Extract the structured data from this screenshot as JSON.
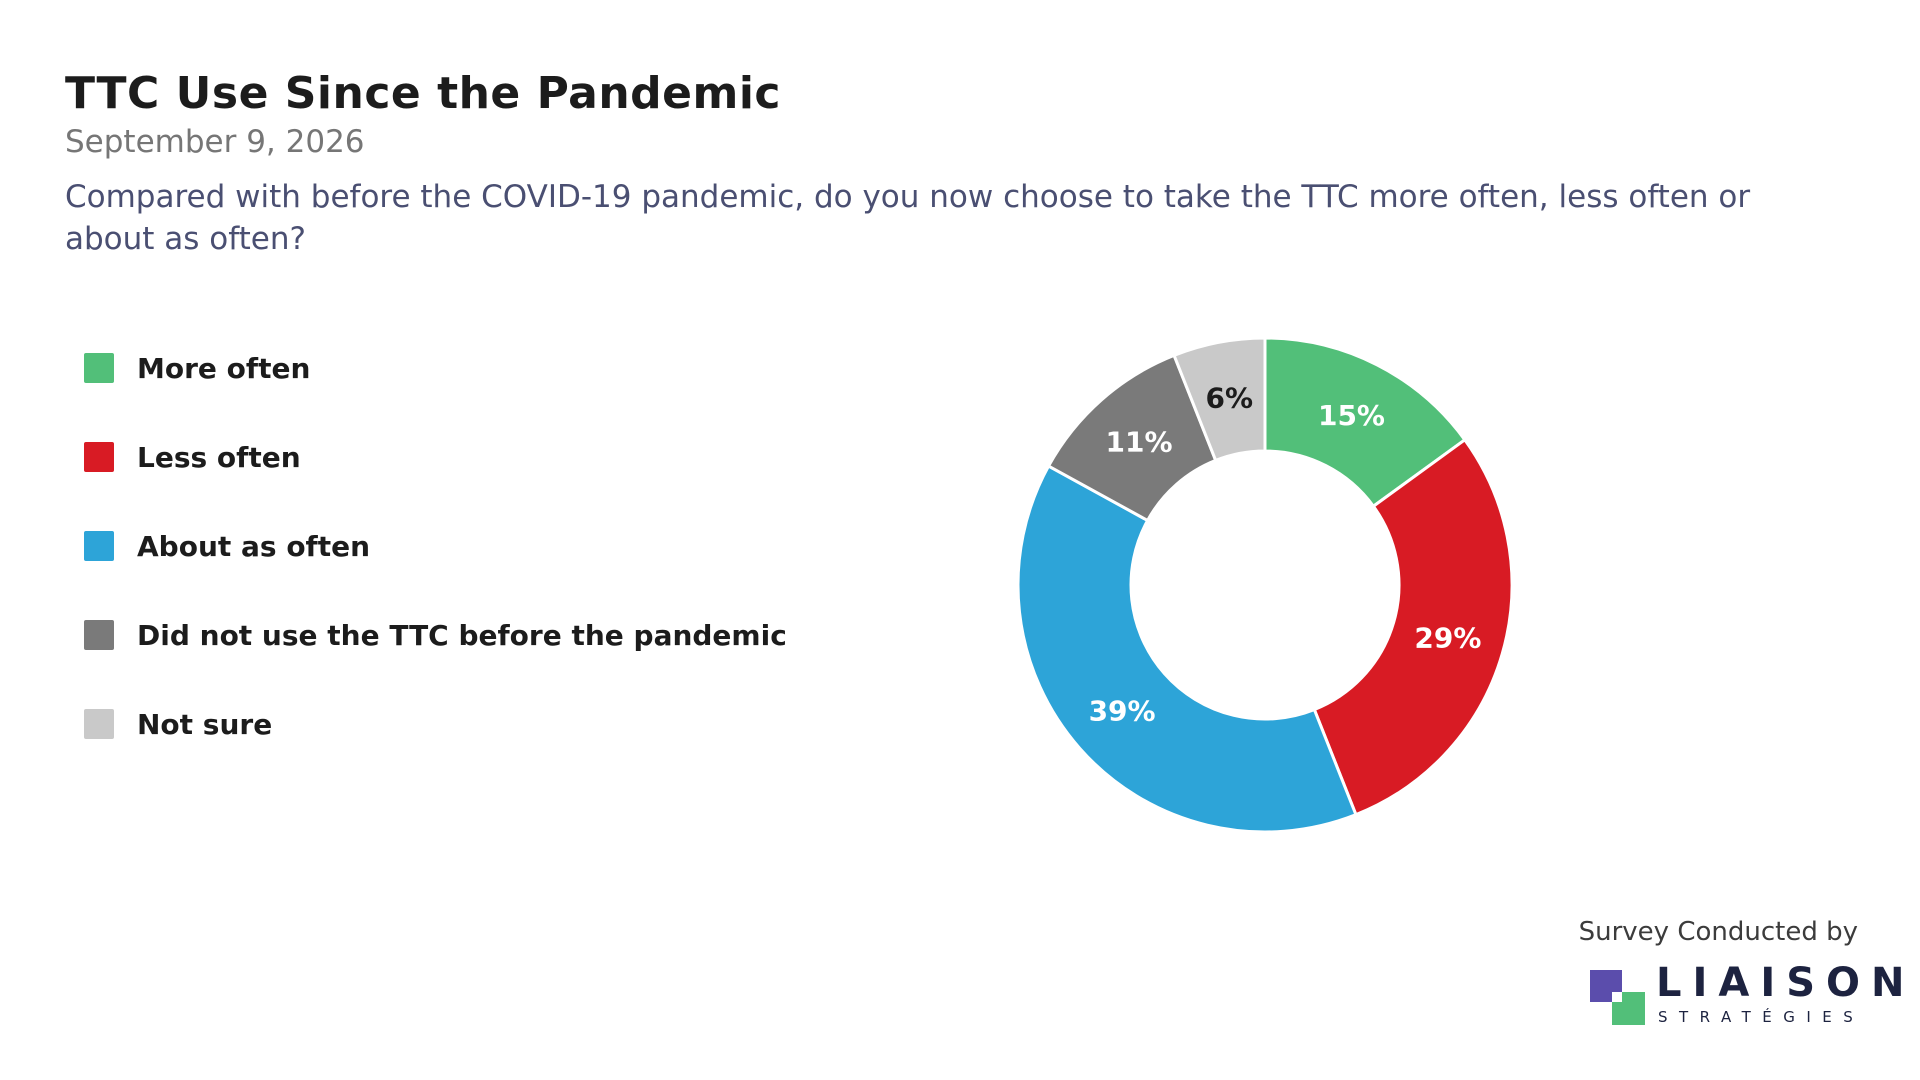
{
  "header": {
    "title": "TTC Use Since the Pandemic",
    "date": "September 9, 2026",
    "question": "Compared with before the COVID-19 pandemic, do you now choose to take the TTC more often, less often or about as often?"
  },
  "chart_data": {
    "type": "pie",
    "donut": true,
    "legend_position": "left",
    "slices": [
      {
        "label": "More often",
        "value": 15,
        "display": "15%",
        "color": "#52bf79",
        "label_color": "#ffffff"
      },
      {
        "label": "Less often",
        "value": 29,
        "display": "29%",
        "color": "#d81b24",
        "label_color": "#ffffff"
      },
      {
        "label": "About as often",
        "value": 39,
        "display": "39%",
        "color": "#2da4d8",
        "label_color": "#ffffff"
      },
      {
        "label": "Did not use the TTC before the pandemic",
        "value": 11,
        "display": "11%",
        "color": "#7a7a7a",
        "label_color": "#ffffff"
      },
      {
        "label": "Not sure",
        "value": 6,
        "display": "6%",
        "color": "#c9c9c9",
        "label_color": "#1c1c1c"
      }
    ]
  },
  "footer": {
    "credit": "Survey Conducted by",
    "logo_word": "LIAISON",
    "logo_sub": "STRATÉGIES",
    "logo_colors": [
      "#5b4dac",
      "#52bf79"
    ]
  }
}
